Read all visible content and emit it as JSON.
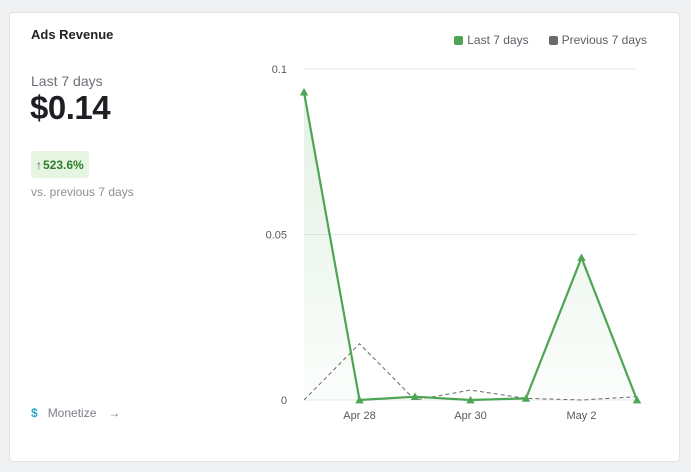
{
  "card": {
    "title": "Ads Revenue",
    "period_label": "Last 7 days",
    "value": "$0.14",
    "change": "523.6%",
    "change_direction": "up",
    "comparison_label": "vs. previous 7 days",
    "link_label": "Monetize",
    "link_icon": "dollar-icon"
  },
  "colors": {
    "current": "#4ea554",
    "previous": "#6a6a6a",
    "badge_bg": "#e6f4e2",
    "badge_text": "#2e7d2a",
    "accent": "#2aa7c9"
  },
  "chart_data": {
    "type": "line",
    "y_ticks": [
      "0",
      "0.05",
      "0.1"
    ],
    "ylim": [
      0,
      0.1
    ],
    "x_labels": [
      "Apr 28",
      "Apr 30",
      "May 2"
    ],
    "legend": "top-right",
    "series": [
      {
        "name": "Last 7 days",
        "style": "solid",
        "marker": "triangle",
        "area": true,
        "values": [
          0.093,
          0.0,
          0.001,
          0.0,
          0.0005,
          0.043,
          0.0
        ]
      },
      {
        "name": "Previous 7 days",
        "style": "dashed",
        "values": [
          0.0,
          0.017,
          0.0,
          0.003,
          0.0005,
          0.0,
          0.001
        ]
      }
    ]
  }
}
